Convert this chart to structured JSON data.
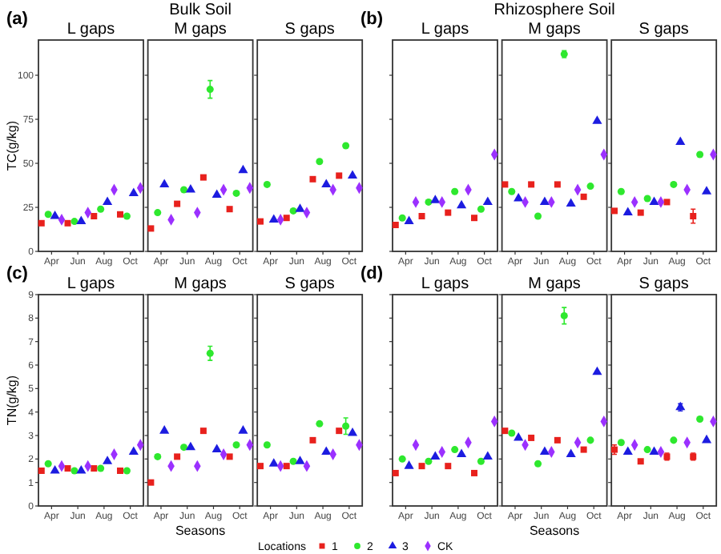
{
  "chart_data": [
    {
      "type": "scatter",
      "title": "L gaps",
      "annotations": [
        "(a)",
        "Bulk Soil"
      ],
      "ylabel": "TC(g/kg)",
      "legend": "bottom",
      "legend_title": "Locations",
      "categories": [
        "Apr",
        "Jun",
        "Aug",
        "Oct"
      ],
      "ylim": [
        0,
        120
      ],
      "yticks": [
        0,
        25,
        50,
        75,
        100
      ],
      "series": [
        {
          "name": "1",
          "color": "#e8211d",
          "marker": "square",
          "values": [
            16,
            16,
            20,
            21
          ]
        },
        {
          "name": "2",
          "color": "#2ee82e",
          "marker": "circle",
          "values": [
            21,
            17,
            24,
            20
          ]
        },
        {
          "name": "3",
          "color": "#1c1ce0",
          "marker": "triangle",
          "values": [
            20,
            17,
            28,
            33
          ]
        },
        {
          "name": "CK",
          "color": "#9b30ff",
          "marker": "diamond",
          "values": [
            18,
            22,
            35,
            36
          ]
        }
      ]
    },
    {
      "type": "scatter",
      "title": "M gaps",
      "tick_labels": "x",
      "categories": [
        "Apr",
        "Jun",
        "Aug",
        "Oct"
      ],
      "ylim": [
        0,
        120
      ],
      "yticks": [
        0,
        25,
        50,
        75,
        100
      ],
      "series": [
        {
          "color": "#e8211d",
          "marker": "square",
          "values": [
            13,
            27,
            42,
            24
          ]
        },
        {
          "color": "#2ee82e",
          "marker": "circle",
          "values": [
            22,
            35,
            92,
            33
          ],
          "errors": [
            null,
            null,
            5,
            null
          ]
        },
        {
          "color": "#1c1ce0",
          "marker": "triangle",
          "values": [
            38,
            35,
            32,
            46
          ]
        },
        {
          "color": "#9b30ff",
          "marker": "diamond",
          "values": [
            18,
            22,
            35,
            36
          ]
        }
      ]
    },
    {
      "type": "scatter",
      "title": "S gaps",
      "tick_labels": "x",
      "categories": [
        "Apr",
        "Jun",
        "Aug",
        "Oct"
      ],
      "ylim": [
        0,
        120
      ],
      "yticks": [
        0,
        25,
        50,
        75,
        100
      ],
      "series": [
        {
          "color": "#e8211d",
          "marker": "square",
          "values": [
            17,
            19,
            41,
            43
          ]
        },
        {
          "color": "#2ee82e",
          "marker": "circle",
          "values": [
            38,
            23,
            51,
            60
          ]
        },
        {
          "color": "#1c1ce0",
          "marker": "triangle",
          "values": [
            18,
            24,
            38,
            43
          ]
        },
        {
          "color": "#9b30ff",
          "marker": "diamond",
          "values": [
            18,
            22,
            35,
            36
          ]
        }
      ]
    },
    {
      "type": "scatter",
      "title": "L gaps",
      "annotations": [
        "(b)",
        "Rhizosphere Soil"
      ],
      "tick_labels": "x",
      "categories": [
        "Apr",
        "Jun",
        "Aug",
        "Oct"
      ],
      "ylim": [
        0,
        120
      ],
      "yticks": [
        0,
        25,
        50,
        75,
        100
      ],
      "series": [
        {
          "color": "#e8211d",
          "marker": "square",
          "values": [
            15,
            20,
            22,
            19
          ]
        },
        {
          "color": "#2ee82e",
          "marker": "circle",
          "values": [
            19,
            28,
            34,
            24
          ]
        },
        {
          "color": "#1c1ce0",
          "marker": "triangle",
          "values": [
            17,
            29,
            26,
            28
          ]
        },
        {
          "color": "#9b30ff",
          "marker": "diamond",
          "values": [
            28,
            28,
            35,
            55
          ]
        }
      ]
    },
    {
      "type": "scatter",
      "title": "M gaps",
      "tick_labels": "x",
      "categories": [
        "Apr",
        "Jun",
        "Aug",
        "Oct"
      ],
      "ylim": [
        0,
        120
      ],
      "yticks": [
        0,
        25,
        50,
        75,
        100
      ],
      "series": [
        {
          "color": "#e8211d",
          "marker": "square",
          "values": [
            38,
            38,
            38,
            31
          ]
        },
        {
          "color": "#2ee82e",
          "marker": "circle",
          "values": [
            34,
            20,
            112,
            37
          ],
          "errors": [
            null,
            null,
            2,
            null
          ]
        },
        {
          "color": "#1c1ce0",
          "marker": "triangle",
          "values": [
            30,
            28,
            27,
            74
          ]
        },
        {
          "color": "#9b30ff",
          "marker": "diamond",
          "values": [
            28,
            28,
            35,
            55
          ]
        }
      ]
    },
    {
      "type": "scatter",
      "title": "S gaps",
      "tick_labels": "x",
      "categories": [
        "Apr",
        "Jun",
        "Aug",
        "Oct"
      ],
      "ylim": [
        0,
        120
      ],
      "yticks": [
        0,
        25,
        50,
        75,
        100
      ],
      "series": [
        {
          "color": "#e8211d",
          "marker": "square",
          "values": [
            23,
            22,
            28,
            20
          ],
          "errors": [
            null,
            null,
            null,
            4
          ]
        },
        {
          "color": "#2ee82e",
          "marker": "circle",
          "values": [
            34,
            30,
            38,
            55
          ]
        },
        {
          "color": "#1c1ce0",
          "marker": "triangle",
          "values": [
            22,
            28,
            62,
            34
          ]
        },
        {
          "color": "#9b30ff",
          "marker": "diamond",
          "values": [
            28,
            28,
            35,
            55
          ]
        }
      ]
    },
    {
      "type": "scatter",
      "title": "L gaps",
      "annotations": [
        "(c)"
      ],
      "ylabel": "TN(g/kg)",
      "categories": [
        "Apr",
        "Jun",
        "Aug",
        "Oct"
      ],
      "ylim": [
        0,
        9
      ],
      "yticks": [
        0,
        1,
        2,
        3,
        4,
        5,
        6,
        7,
        8,
        9
      ],
      "series": [
        {
          "color": "#e8211d",
          "marker": "square",
          "values": [
            1.5,
            1.6,
            1.6,
            1.5
          ]
        },
        {
          "color": "#2ee82e",
          "marker": "circle",
          "values": [
            1.8,
            1.5,
            1.6,
            1.5
          ]
        },
        {
          "color": "#1c1ce0",
          "marker": "triangle",
          "values": [
            1.5,
            1.5,
            1.9,
            2.3
          ]
        },
        {
          "color": "#9b30ff",
          "marker": "diamond",
          "values": [
            1.7,
            1.7,
            2.2,
            2.6
          ]
        }
      ]
    },
    {
      "type": "scatter",
      "title": "M gaps",
      "xlabel": "Seasons",
      "tick_labels": "x",
      "categories": [
        "Apr",
        "Jun",
        "Aug",
        "Oct"
      ],
      "ylim": [
        0,
        9
      ],
      "yticks": [
        0,
        1,
        2,
        3,
        4,
        5,
        6,
        7,
        8,
        9
      ],
      "series": [
        {
          "color": "#e8211d",
          "marker": "square",
          "values": [
            1,
            2.1,
            3.2,
            2.1
          ]
        },
        {
          "color": "#2ee82e",
          "marker": "circle",
          "values": [
            2.1,
            2.5,
            6.5,
            2.6
          ],
          "errors": [
            null,
            null,
            0.3,
            null
          ]
        },
        {
          "color": "#1c1ce0",
          "marker": "triangle",
          "values": [
            3.2,
            2.5,
            2.4,
            3.2
          ]
        },
        {
          "color": "#9b30ff",
          "marker": "diamond",
          "values": [
            1.7,
            1.7,
            2.2,
            2.6
          ]
        }
      ]
    },
    {
      "type": "scatter",
      "title": "S gaps",
      "tick_labels": "x",
      "categories": [
        "Apr",
        "Jun",
        "Aug",
        "Oct"
      ],
      "ylim": [
        0,
        9
      ],
      "yticks": [
        0,
        1,
        2,
        3,
        4,
        5,
        6,
        7,
        8,
        9
      ],
      "series": [
        {
          "color": "#e8211d",
          "marker": "square",
          "values": [
            1.7,
            1.7,
            2.8,
            3.2
          ]
        },
        {
          "color": "#2ee82e",
          "marker": "circle",
          "values": [
            2.6,
            1.9,
            3.5,
            3.4
          ],
          "errors": [
            null,
            null,
            null,
            0.35
          ]
        },
        {
          "color": "#1c1ce0",
          "marker": "triangle",
          "values": [
            1.8,
            1.9,
            2.3,
            3.1
          ]
        },
        {
          "color": "#9b30ff",
          "marker": "diamond",
          "values": [
            1.7,
            1.7,
            2.2,
            2.6
          ]
        }
      ]
    },
    {
      "type": "scatter",
      "title": "L gaps",
      "annotations": [
        "(d)"
      ],
      "tick_labels": "x",
      "categories": [
        "Apr",
        "Jun",
        "Aug",
        "Oct"
      ],
      "ylim": [
        0,
        9
      ],
      "yticks": [
        0,
        1,
        2,
        3,
        4,
        5,
        6,
        7,
        8,
        9
      ],
      "series": [
        {
          "color": "#e8211d",
          "marker": "square",
          "values": [
            1.4,
            1.7,
            1.7,
            1.4
          ]
        },
        {
          "color": "#2ee82e",
          "marker": "circle",
          "values": [
            2,
            1.9,
            2.4,
            1.9
          ]
        },
        {
          "color": "#1c1ce0",
          "marker": "triangle",
          "values": [
            1.7,
            2.1,
            2.2,
            2.1
          ]
        },
        {
          "color": "#9b30ff",
          "marker": "diamond",
          "values": [
            2.6,
            2.3,
            2.7,
            3.6
          ]
        }
      ]
    },
    {
      "type": "scatter",
      "title": "M gaps",
      "xlabel": "Seasons",
      "tick_labels": "x",
      "categories": [
        "Apr",
        "Jun",
        "Aug",
        "Oct"
      ],
      "ylim": [
        0,
        9
      ],
      "yticks": [
        0,
        1,
        2,
        3,
        4,
        5,
        6,
        7,
        8,
        9
      ],
      "series": [
        {
          "color": "#e8211d",
          "marker": "square",
          "values": [
            3.2,
            2.9,
            2.8,
            2.4
          ]
        },
        {
          "color": "#2ee82e",
          "marker": "circle",
          "values": [
            3.1,
            1.8,
            8.1,
            2.8
          ],
          "errors": [
            null,
            null,
            0.35,
            null
          ]
        },
        {
          "color": "#1c1ce0",
          "marker": "triangle",
          "values": [
            2.9,
            2.3,
            2.2,
            5.7
          ]
        },
        {
          "color": "#9b30ff",
          "marker": "diamond",
          "values": [
            2.6,
            2.3,
            2.7,
            3.6
          ]
        }
      ]
    },
    {
      "type": "scatter",
      "title": "S gaps",
      "tick_labels": "x",
      "categories": [
        "Apr",
        "Jun",
        "Aug",
        "Oct"
      ],
      "ylim": [
        0,
        9
      ],
      "yticks": [
        0,
        1,
        2,
        3,
        4,
        5,
        6,
        7,
        8,
        9
      ],
      "series": [
        {
          "color": "#e8211d",
          "marker": "square",
          "values": [
            2.4,
            1.9,
            2.1,
            2.1
          ],
          "errors": [
            0.2,
            null,
            0.15,
            0.15
          ]
        },
        {
          "color": "#2ee82e",
          "marker": "circle",
          "values": [
            2.7,
            2.4,
            2.8,
            3.7
          ]
        },
        {
          "color": "#1c1ce0",
          "marker": "triangle",
          "values": [
            2.3,
            2.3,
            4.2,
            2.8
          ],
          "errors": [
            null,
            null,
            0.15,
            null
          ]
        },
        {
          "color": "#9b30ff",
          "marker": "diamond",
          "values": [
            2.6,
            2.3,
            2.7,
            3.6
          ]
        }
      ]
    }
  ]
}
